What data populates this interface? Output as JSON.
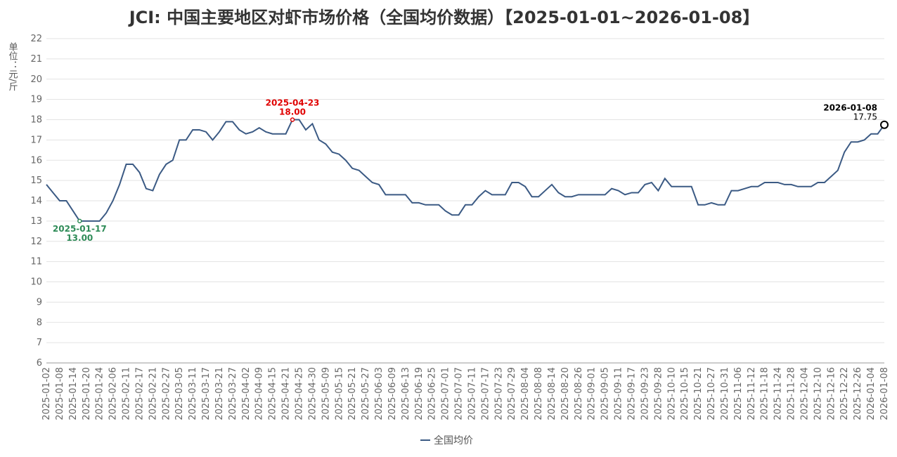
{
  "chart_data": {
    "type": "line",
    "title": "JCI: 中国主要地区对虾市场价格（全国均价数据）【2025-01-01~2026-01-08】",
    "y_label": "单位：元/斤",
    "categories": [
      "2025-01-02",
      null,
      "2025-01-08",
      null,
      "2025-01-14",
      null,
      "2025-01-20",
      null,
      "2025-01-24",
      null,
      "2025-02-06",
      null,
      "2025-02-11",
      null,
      "2025-02-17",
      null,
      "2025-02-21",
      null,
      "2025-02-27",
      null,
      "2025-03-05",
      null,
      "2025-03-11",
      null,
      "2025-03-17",
      null,
      "2025-03-21",
      null,
      "2025-03-27",
      null,
      "2025-04-02",
      null,
      "2025-04-09",
      null,
      "2025-04-15",
      null,
      "2025-04-21",
      null,
      "2025-04-25",
      null,
      "2025-04-30",
      null,
      "2025-05-09",
      null,
      "2025-05-15",
      null,
      "2025-05-21",
      null,
      "2025-05-27",
      null,
      "2025-06-03",
      null,
      "2025-06-09",
      null,
      "2025-06-13",
      null,
      "2025-06-19",
      null,
      "2025-06-25",
      null,
      "2025-07-01",
      null,
      "2025-07-07",
      null,
      "2025-07-11",
      null,
      "2025-07-17",
      null,
      "2025-07-23",
      null,
      "2025-07-29",
      null,
      "2025-08-04",
      null,
      "2025-08-08",
      null,
      "2025-08-14",
      null,
      "2025-08-20",
      null,
      "2025-08-26",
      null,
      "2025-09-01",
      null,
      "2025-09-05",
      null,
      "2025-09-11",
      null,
      "2025-09-17",
      null,
      "2025-09-23",
      null,
      "2025-09-28",
      null,
      "2025-10-10",
      null,
      "2025-10-15",
      null,
      "2025-10-21",
      null,
      "2025-10-27",
      null,
      "2025-10-31",
      null,
      "2025-11-06",
      null,
      "2025-11-12",
      null,
      "2025-11-18",
      null,
      "2025-11-24",
      null,
      "2025-11-28",
      null,
      "2025-12-04",
      null,
      "2025-12-10",
      null,
      "2025-12-16",
      null,
      "2025-12-22",
      null,
      "2025-12-26",
      null,
      "2026-01-04",
      null,
      "2026-01-08"
    ],
    "series": [
      {
        "name": "全国均价",
        "color": "#3b5a84",
        "values": [
          14.8,
          14.4,
          14.0,
          14.0,
          13.5,
          13.0,
          13.0,
          13.0,
          13.0,
          13.4,
          14.0,
          14.8,
          15.8,
          15.8,
          15.4,
          14.6,
          14.5,
          15.3,
          15.8,
          16.0,
          17.0,
          17.0,
          17.5,
          17.5,
          17.4,
          17.0,
          17.4,
          17.9,
          17.9,
          17.5,
          17.3,
          17.4,
          17.6,
          17.4,
          17.3,
          17.3,
          17.3,
          18.0,
          18.0,
          17.5,
          17.8,
          17.0,
          16.8,
          16.4,
          16.3,
          16.0,
          15.6,
          15.5,
          15.2,
          14.9,
          14.8,
          14.3,
          14.3,
          14.3,
          14.3,
          13.9,
          13.9,
          13.8,
          13.8,
          13.8,
          13.5,
          13.3,
          13.3,
          13.8,
          13.8,
          14.2,
          14.5,
          14.3,
          14.3,
          14.3,
          14.9,
          14.9,
          14.7,
          14.2,
          14.2,
          14.5,
          14.8,
          14.4,
          14.2,
          14.2,
          14.3,
          14.3,
          14.3,
          14.3,
          14.3,
          14.6,
          14.5,
          14.3,
          14.4,
          14.4,
          14.8,
          14.9,
          14.5,
          15.1,
          14.7,
          14.7,
          14.7,
          14.7,
          13.8,
          13.8,
          13.9,
          13.8,
          13.8,
          14.5,
          14.5,
          14.6,
          14.7,
          14.7,
          14.9,
          14.9,
          14.9,
          14.8,
          14.8,
          14.7,
          14.7,
          14.7,
          14.9,
          14.9,
          15.2,
          15.5,
          16.4,
          16.9,
          16.9,
          17.0,
          17.3,
          17.3,
          17.75
        ]
      }
    ],
    "annotations": [
      {
        "date": "2025-01-17",
        "value": 13,
        "value_label": "13.00",
        "color": "#2e8b57",
        "position": "below"
      },
      {
        "date": "2025-04-23",
        "value": 18,
        "value_label": "18.00",
        "color": "#e00000",
        "position": "above"
      },
      {
        "date": "2026-01-08",
        "value": 17.75,
        "value_label": "17.75",
        "color": "#000000",
        "position": "above"
      }
    ],
    "ylim": [
      6,
      22
    ],
    "yticks": [
      6,
      7,
      8,
      9,
      10,
      11,
      12,
      13,
      14,
      15,
      16,
      17,
      18,
      19,
      20,
      21,
      22
    ],
    "grid": true,
    "legend": "bottom"
  }
}
